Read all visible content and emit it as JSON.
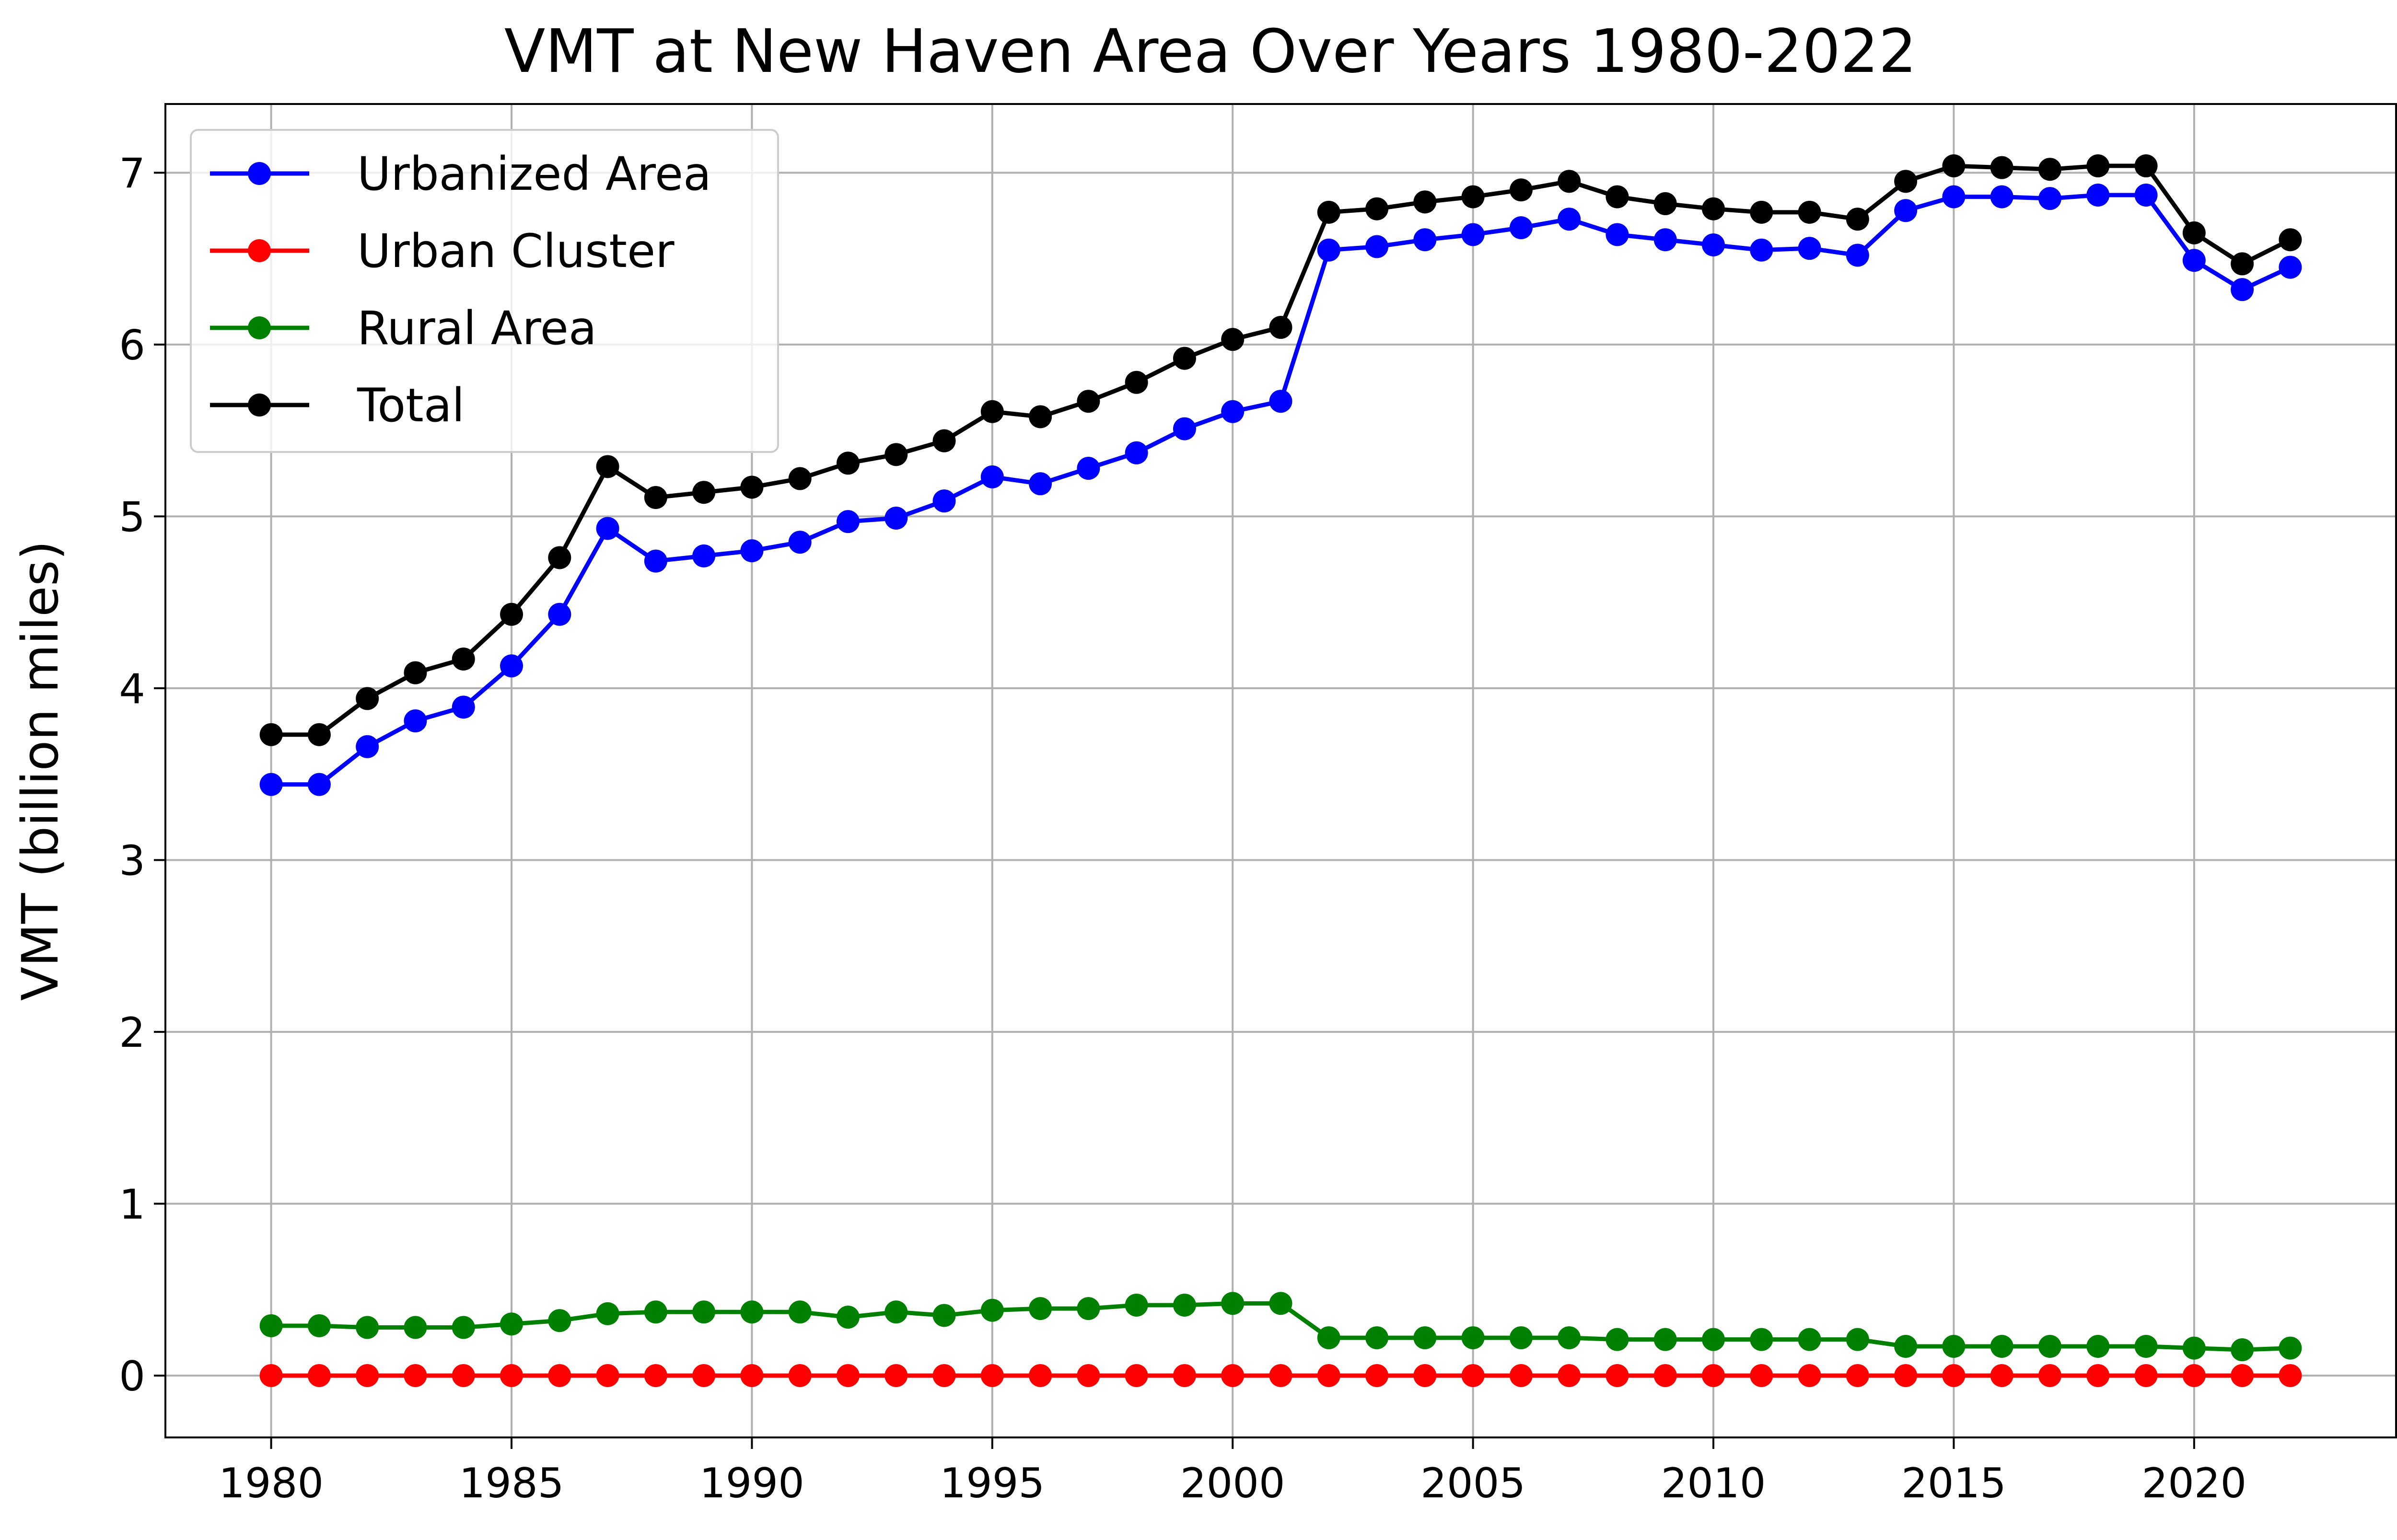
{
  "chart_data": {
    "type": "line",
    "title": "VMT at New Haven Area Over Years 1980-2022",
    "xlabel": "",
    "ylabel": "VMT (billion miles)",
    "xlim": [
      1977.8,
      2024.2
    ],
    "ylim": [
      -0.36,
      7.4
    ],
    "grid": true,
    "legend_position": "upper left",
    "x_ticks": [
      "1980",
      "1985",
      "1990",
      "1995",
      "2000",
      "2005",
      "2010",
      "2015",
      "2020"
    ],
    "y_ticks": [
      "0",
      "1",
      "2",
      "3",
      "4",
      "5",
      "6",
      "7"
    ],
    "x": [
      1980,
      1981,
      1982,
      1983,
      1984,
      1985,
      1986,
      1987,
      1988,
      1989,
      1990,
      1991,
      1992,
      1993,
      1994,
      1995,
      1996,
      1997,
      1998,
      1999,
      2000,
      2001,
      2002,
      2003,
      2004,
      2005,
      2006,
      2007,
      2008,
      2009,
      2010,
      2011,
      2012,
      2013,
      2014,
      2015,
      2016,
      2017,
      2018,
      2019,
      2020,
      2021,
      2022
    ],
    "series": [
      {
        "name": "Urbanized Area",
        "color": "#0000ff",
        "values": [
          3.44,
          3.44,
          3.66,
          3.81,
          3.89,
          4.13,
          4.43,
          4.93,
          4.74,
          4.77,
          4.8,
          4.85,
          4.97,
          4.99,
          5.09,
          5.23,
          5.19,
          5.28,
          5.37,
          5.51,
          5.61,
          5.67,
          6.55,
          6.57,
          6.61,
          6.64,
          6.68,
          6.73,
          6.64,
          6.61,
          6.58,
          6.55,
          6.56,
          6.52,
          6.78,
          6.86,
          6.86,
          6.85,
          6.87,
          6.87,
          6.49,
          6.32,
          6.45
        ]
      },
      {
        "name": "Urban Cluster",
        "color": "#ff0000",
        "values": [
          0,
          0,
          0,
          0,
          0,
          0,
          0,
          0,
          0,
          0,
          0,
          0,
          0,
          0,
          0,
          0,
          0,
          0,
          0,
          0,
          0,
          0,
          0,
          0,
          0,
          0,
          0,
          0,
          0,
          0,
          0,
          0,
          0,
          0,
          0,
          0,
          0,
          0,
          0,
          0,
          0,
          0,
          0
        ]
      },
      {
        "name": "Rural Area",
        "color": "#008000",
        "values": [
          0.29,
          0.29,
          0.28,
          0.28,
          0.28,
          0.3,
          0.32,
          0.36,
          0.37,
          0.37,
          0.37,
          0.37,
          0.34,
          0.37,
          0.35,
          0.38,
          0.39,
          0.39,
          0.41,
          0.41,
          0.42,
          0.42,
          0.22,
          0.22,
          0.22,
          0.22,
          0.22,
          0.22,
          0.21,
          0.21,
          0.21,
          0.21,
          0.21,
          0.21,
          0.17,
          0.17,
          0.17,
          0.17,
          0.17,
          0.17,
          0.16,
          0.15,
          0.16
        ]
      },
      {
        "name": "Total",
        "color": "#000000",
        "values": [
          3.73,
          3.73,
          3.94,
          4.09,
          4.17,
          4.43,
          4.76,
          5.29,
          5.11,
          5.14,
          5.17,
          5.22,
          5.31,
          5.36,
          5.44,
          5.61,
          5.58,
          5.67,
          5.78,
          5.92,
          6.03,
          6.1,
          6.77,
          6.79,
          6.83,
          6.86,
          6.9,
          6.95,
          6.86,
          6.82,
          6.79,
          6.77,
          6.77,
          6.73,
          6.95,
          7.04,
          7.03,
          7.02,
          7.04,
          7.04,
          6.65,
          6.47,
          6.61
        ]
      }
    ]
  }
}
